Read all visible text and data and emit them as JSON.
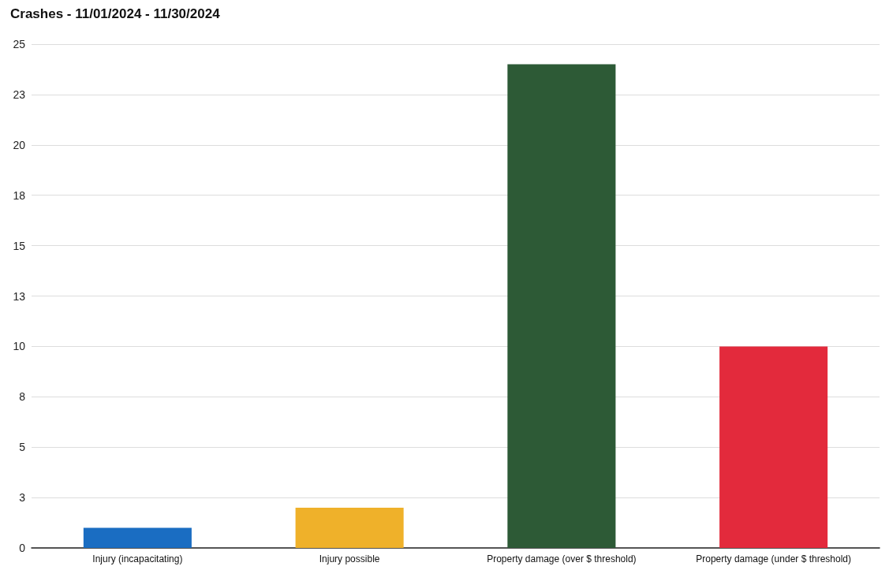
{
  "chart_data": {
    "type": "bar",
    "title": "Crashes - 11/01/2024 - 11/30/2024",
    "categories": [
      "Injury (incapacitating)",
      "Injury possible",
      "Property damage (over $ threshold)",
      "Property damage (under $ threshold)"
    ],
    "values": [
      1,
      2,
      24,
      10
    ],
    "colors": [
      "#1a6dc2",
      "#efb12a",
      "#2d5a36",
      "#e32a3c"
    ],
    "ylim": [
      0,
      25
    ],
    "yticks": [
      0,
      {
        "value": 2.5,
        "label": "3"
      },
      5,
      {
        "value": 7.5,
        "label": "8"
      },
      10,
      {
        "value": 12.5,
        "label": "13"
      },
      15,
      {
        "value": 17.5,
        "label": "18"
      },
      20,
      {
        "value": 22.5,
        "label": "23"
      },
      25
    ],
    "grid": "y"
  }
}
